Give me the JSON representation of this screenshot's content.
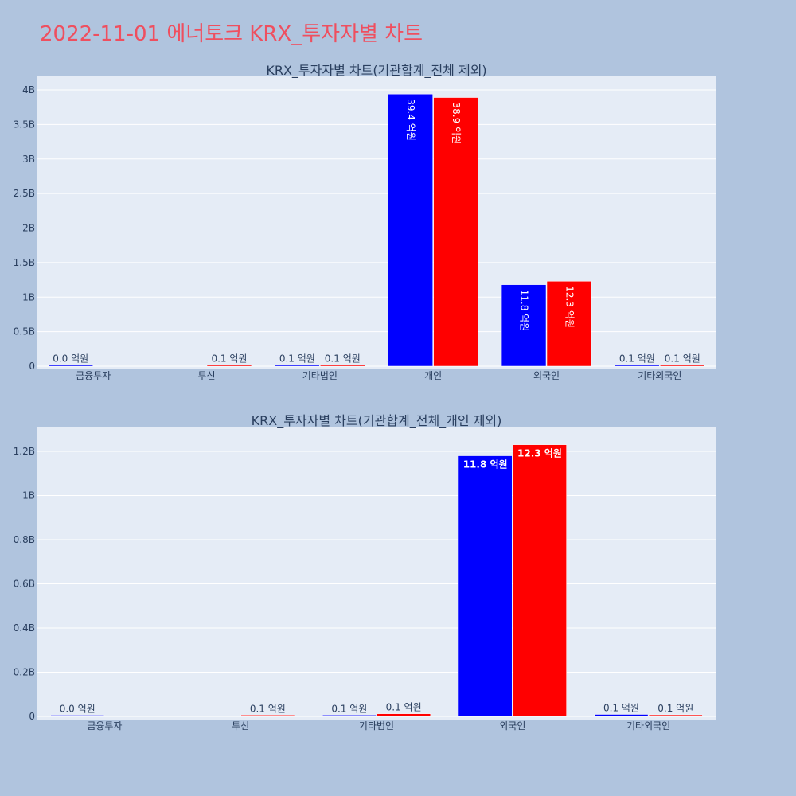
{
  "page": {
    "title": "2022-11-01 에너토크 KRX_투자자별 차트",
    "background": "#b0c4de",
    "plot_background": "#e5ecf6",
    "title_color": "#ef4f5f"
  },
  "chart_data": [
    {
      "type": "bar",
      "title": "KRX_투자자별 차트(기관합계_전체 제외)",
      "categories": [
        "금융투자",
        "투신",
        "기타법인",
        "개인",
        "외국인",
        "기타외국인"
      ],
      "ylim": [
        0,
        4000000000
      ],
      "yticks": [
        0,
        500000000,
        1000000000,
        1500000000,
        2000000000,
        2500000000,
        3000000000,
        3500000000,
        4000000000
      ],
      "ytick_labels": [
        "0",
        "0.5B",
        "1B",
        "1.5B",
        "2B",
        "2.5B",
        "3B",
        "3.5B",
        "4B"
      ],
      "grid": true,
      "series": [
        {
          "color": "#0000ff",
          "values": [
            1000000,
            null,
            6000000,
            3940000000,
            1180000000,
            9000000
          ],
          "labels": [
            "0.0 억원",
            null,
            "0.1 억원",
            "39.4 억원",
            "11.8 억원",
            "0.1 억원"
          ]
        },
        {
          "color": "#ff0000",
          "values": [
            null,
            6000000,
            12000000,
            3890000000,
            1230000000,
            7000000
          ],
          "labels": [
            null,
            "0.1 억원",
            "0.1 억원",
            "38.9 억원",
            "12.3 억원",
            "0.1 억원"
          ]
        }
      ]
    },
    {
      "type": "bar",
      "title": "KRX_투자자별 차트(기관합계_전체_개인 제외)",
      "categories": [
        "금융투자",
        "투신",
        "기타법인",
        "외국인",
        "기타외국인"
      ],
      "ylim": [
        0,
        1300000000
      ],
      "yticks": [
        0,
        200000000,
        400000000,
        600000000,
        800000000,
        1000000000,
        1200000000
      ],
      "ytick_labels": [
        "0",
        "0.2B",
        "0.4B",
        "0.6B",
        "0.8B",
        "1B",
        "1.2B"
      ],
      "grid": true,
      "series": [
        {
          "color": "#0000ff",
          "values": [
            1000000,
            null,
            6000000,
            1180000000,
            9000000
          ],
          "labels": [
            "0.0 억원",
            null,
            "0.1 억원",
            "11.8 억원",
            "0.1 억원"
          ]
        },
        {
          "color": "#ff0000",
          "values": [
            null,
            6000000,
            12000000,
            1230000000,
            7000000
          ],
          "labels": [
            null,
            "0.1 억원",
            "0.1 억원",
            "12.3 억원",
            "0.1 억원"
          ]
        }
      ]
    }
  ]
}
